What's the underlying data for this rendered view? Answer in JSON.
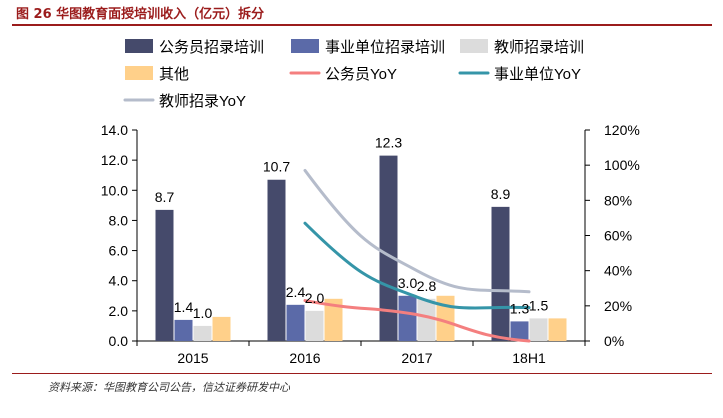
{
  "header": {
    "figure_title": "图 26   华图教育面授培训收入（亿元）拆分"
  },
  "footer": {
    "source": "资料来源：华图教育公司公告，信达证券研发中心"
  },
  "colors": {
    "brand_red": "#9b1c1c"
  },
  "chart_data": {
    "type": "bar",
    "categories": [
      "2015",
      "2016",
      "2017",
      "18H1"
    ],
    "series": [
      {
        "name": "公务员招录培训",
        "kind": "bar",
        "color": "#454a6b",
        "values": [
          8.7,
          10.7,
          12.3,
          8.9
        ],
        "labels": [
          "8.7",
          "10.7",
          "12.3",
          "8.9"
        ]
      },
      {
        "name": "事业单位招录培训",
        "kind": "bar",
        "color": "#5b6aa8",
        "values": [
          1.4,
          2.4,
          3.0,
          1.3
        ],
        "labels": [
          "1.4",
          "2.4",
          "3.0",
          "1.3"
        ]
      },
      {
        "name": "教师招录培训",
        "kind": "bar",
        "color": "#dcdcdc",
        "values": [
          1.0,
          2.0,
          2.8,
          1.5
        ],
        "labels": [
          "1.0",
          "2.0",
          "2.8",
          "1.5"
        ]
      },
      {
        "name": "其他",
        "kind": "bar",
        "color": "#ffd08a",
        "values": [
          1.6,
          2.8,
          3.0,
          1.5
        ],
        "labels": [
          "",
          "",
          "",
          ""
        ]
      },
      {
        "name": "公务员YoY",
        "kind": "line",
        "color": "#f47f7f",
        "values": [
          null,
          0.23,
          0.15,
          0.0
        ]
      },
      {
        "name": "事业单位YoY",
        "kind": "line",
        "color": "#3595a8",
        "values": [
          null,
          0.67,
          0.25,
          0.19
        ]
      },
      {
        "name": "教师招录YoY",
        "kind": "line",
        "color": "#b5bccb",
        "values": [
          null,
          0.97,
          0.4,
          0.28
        ]
      }
    ],
    "y_left": {
      "min": 0,
      "max": 14,
      "ticks": [
        "0.0",
        "2.0",
        "4.0",
        "6.0",
        "8.0",
        "10.0",
        "12.0",
        "14.0"
      ]
    },
    "y_right": {
      "min": 0,
      "max": 1.2,
      "ticks": [
        "0%",
        "20%",
        "40%",
        "60%",
        "80%",
        "100%",
        "120%"
      ]
    },
    "legend_position": "top",
    "grid": false
  }
}
